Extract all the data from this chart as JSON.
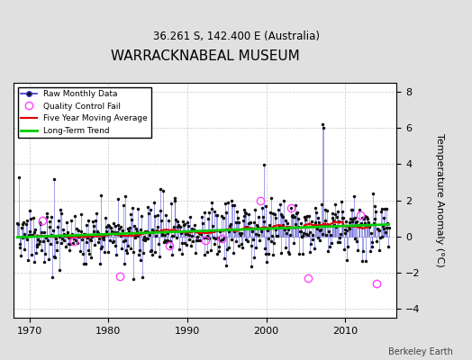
{
  "title": "WARRACKNABEAL MUSEUM",
  "subtitle": "36.261 S, 142.400 E (Australia)",
  "ylabel": "Temperature Anomaly (°C)",
  "credit": "Berkeley Earth",
  "xlim": [
    1968.0,
    2016.5
  ],
  "ylim": [
    -4.5,
    8.5
  ],
  "yticks": [
    -4,
    -2,
    0,
    2,
    4,
    6,
    8
  ],
  "xticks": [
    1970,
    1980,
    1990,
    2000,
    2010
  ],
  "seed": 137,
  "start_year": 1968.5,
  "end_year": 2015.5,
  "n_months": 564,
  "blue_line_color": "#3333cc",
  "dot_color": "#111111",
  "qc_fail_color": "#ff44ff",
  "moving_avg_color": "#dd0000",
  "trend_color": "#00cc00",
  "background_color": "#e0e0e0",
  "plot_bg_color": "#ffffff",
  "grid_color": "#bbbbbb"
}
